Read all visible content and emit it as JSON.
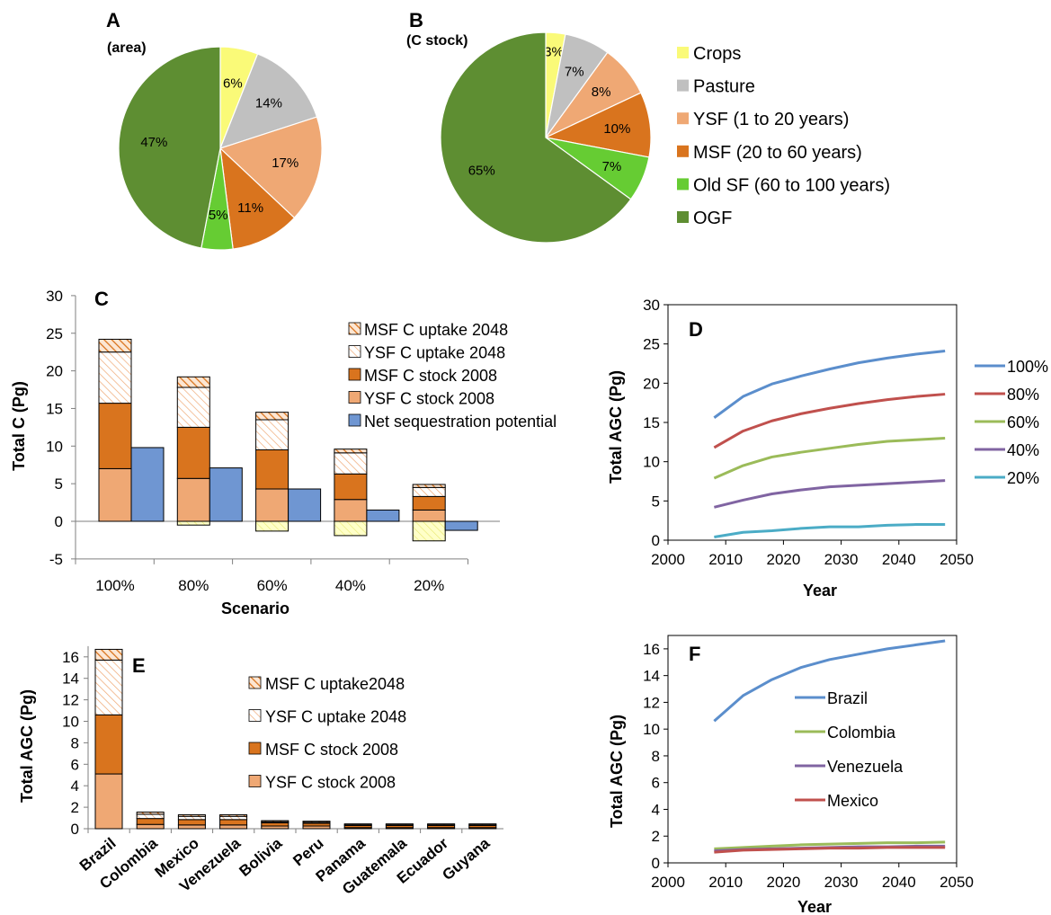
{
  "colors": {
    "crops": "#FAFA78",
    "pasture": "#C0C0C0",
    "ysf": "#EFA874",
    "msf": "#D9741E",
    "oldsf": "#66CC33",
    "ogf": "#5E8E32",
    "net": "#6F96D2",
    "line100": "#5B8ECC",
    "line80": "#C0504D",
    "line60": "#9BBB59",
    "line40": "#8064A2",
    "line20": "#4BACC6"
  },
  "chart_data": [
    {
      "panel": "A",
      "type": "pie",
      "title": "A",
      "subtitle": "(area)",
      "labels": [
        "Crops",
        "Pasture",
        "YSF (1 to 20 years)",
        "MSF (20 to 60 years)",
        "Old SF (60 to 100 years)",
        "OGF"
      ],
      "values": [
        6,
        14,
        17,
        11,
        5,
        47
      ],
      "value_labels": [
        "6%",
        "14%",
        "17%",
        "11%",
        "5%",
        "47%"
      ]
    },
    {
      "panel": "B",
      "type": "pie",
      "title": "B",
      "subtitle": "(C stock)",
      "labels": [
        "Crops",
        "Pasture",
        "YSF (1 to 20 years)",
        "MSF (20 to 60 years)",
        "Old SF (60 to 100 years)",
        "OGF"
      ],
      "values": [
        3,
        7,
        8,
        10,
        7,
        65
      ],
      "value_labels": [
        "3%",
        "7%",
        "8%",
        "10%",
        "7%",
        "65%"
      ],
      "legend": [
        "Crops",
        "Pasture",
        "YSF (1 to 20 years)",
        "MSF (20 to 60 years)",
        "Old SF (60 to 100 years)",
        "OGF"
      ]
    },
    {
      "panel": "C",
      "type": "bar",
      "title": "C",
      "categories": [
        "100%",
        "80%",
        "60%",
        "40%",
        "20%"
      ],
      "xlabel": "Scenario",
      "ylabel": "Total C (Pg)",
      "ylim": [
        -5,
        30
      ],
      "yticks": [
        "-5",
        "0",
        "5",
        "10",
        "15",
        "20",
        "25",
        "30"
      ],
      "stacked_series": [
        {
          "name": "YSF C stock 2008",
          "values": [
            7.0,
            5.7,
            4.3,
            2.9,
            1.5
          ]
        },
        {
          "name": "MSF C stock 2008",
          "values": [
            8.7,
            6.8,
            5.2,
            3.4,
            1.8
          ]
        },
        {
          "name": "YSF C uptake 2048",
          "values": [
            6.8,
            5.3,
            4.0,
            2.8,
            1.2
          ]
        },
        {
          "name": "MSF C uptake 2048",
          "values": [
            1.7,
            1.4,
            1.0,
            0.5,
            0.4
          ]
        }
      ],
      "negative_series": {
        "values": [
          0,
          -0.5,
          -1.3,
          -1.9,
          -2.6
        ]
      },
      "net_series": {
        "name": "Net sequestration potential",
        "values": [
          9.8,
          7.1,
          4.3,
          1.5,
          -1.2
        ]
      },
      "legend": [
        "MSF C uptake 2048",
        "YSF C uptake 2048",
        "MSF C stock 2008",
        "YSF C stock 2008",
        "Net sequestration potential"
      ]
    },
    {
      "panel": "D",
      "type": "line",
      "title": "D",
      "xlabel": "Year",
      "ylabel": "Total AGC (Pg)",
      "xlim": [
        2000,
        2050
      ],
      "ylim": [
        0,
        30
      ],
      "xticks": [
        "2000",
        "2010",
        "2020",
        "2030",
        "2040",
        "2050"
      ],
      "yticks": [
        "0",
        "5",
        "10",
        "15",
        "20",
        "25",
        "30"
      ],
      "x": [
        2008,
        2013,
        2018,
        2023,
        2028,
        2033,
        2038,
        2043,
        2048
      ],
      "series": [
        {
          "name": "100%",
          "values": [
            15.6,
            18.3,
            19.9,
            20.9,
            21.8,
            22.6,
            23.2,
            23.7,
            24.1
          ]
        },
        {
          "name": "80%",
          "values": [
            11.8,
            13.9,
            15.2,
            16.1,
            16.8,
            17.4,
            17.9,
            18.3,
            18.6
          ]
        },
        {
          "name": "60%",
          "values": [
            7.9,
            9.5,
            10.6,
            11.2,
            11.7,
            12.2,
            12.6,
            12.8,
            13.0
          ]
        },
        {
          "name": "40%",
          "values": [
            4.2,
            5.1,
            5.9,
            6.4,
            6.8,
            7.0,
            7.2,
            7.4,
            7.6
          ]
        },
        {
          "name": "20%",
          "values": [
            0.4,
            1.0,
            1.2,
            1.5,
            1.7,
            1.7,
            1.9,
            2.0,
            2.0
          ]
        }
      ]
    },
    {
      "panel": "E",
      "type": "bar",
      "title": "E",
      "categories": [
        "Brazil",
        "Colombia",
        "Mexico",
        "Venezuela",
        "Bolivia",
        "Peru",
        "Panama",
        "Guatemala",
        "Ecuador",
        "Guyana"
      ],
      "ylabel": "Total AGC (Pg)",
      "ylim": [
        0,
        17
      ],
      "yticks": [
        "0",
        "2",
        "4",
        "6",
        "8",
        "10",
        "12",
        "14",
        "16"
      ],
      "stacked_series": [
        {
          "name": "YSF C stock 2008",
          "values": [
            5.1,
            0.4,
            0.35,
            0.35,
            0.25,
            0.25,
            0.1,
            0.1,
            0.1,
            0.1
          ]
        },
        {
          "name": "MSF C stock 2008",
          "values": [
            5.5,
            0.55,
            0.5,
            0.5,
            0.3,
            0.25,
            0.2,
            0.2,
            0.2,
            0.2
          ]
        },
        {
          "name": "YSF C uptake 2048",
          "values": [
            5.1,
            0.4,
            0.3,
            0.3,
            0.1,
            0.1,
            0.1,
            0.1,
            0.1,
            0.1
          ]
        },
        {
          "name": "MSF C uptake2048",
          "values": [
            1.0,
            0.2,
            0.15,
            0.15,
            0.1,
            0.1,
            0.05,
            0.05,
            0.05,
            0.05
          ]
        }
      ],
      "legend": [
        "MSF C uptake2048",
        "YSF C uptake 2048",
        "MSF C stock 2008",
        "YSF C stock 2008"
      ]
    },
    {
      "panel": "F",
      "type": "line",
      "title": "F",
      "xlabel": "Year",
      "ylabel": "Total AGC (Pg)",
      "xlim": [
        2000,
        2050
      ],
      "ylim": [
        0,
        17
      ],
      "xticks": [
        "2000",
        "2010",
        "2020",
        "2030",
        "2040",
        "2050"
      ],
      "yticks": [
        "0",
        "2",
        "4",
        "6",
        "8",
        "10",
        "12",
        "14",
        "16"
      ],
      "x": [
        2008,
        2013,
        2018,
        2023,
        2028,
        2033,
        2038,
        2043,
        2048
      ],
      "series": [
        {
          "name": "Brazil",
          "values": [
            10.6,
            12.5,
            13.7,
            14.6,
            15.2,
            15.6,
            16.0,
            16.3,
            16.6
          ]
        },
        {
          "name": "Colombia",
          "values": [
            1.05,
            1.15,
            1.25,
            1.35,
            1.4,
            1.45,
            1.5,
            1.5,
            1.55
          ]
        },
        {
          "name": "Venezuela",
          "values": [
            0.9,
            1.0,
            1.05,
            1.1,
            1.15,
            1.2,
            1.2,
            1.25,
            1.25
          ]
        },
        {
          "name": "Mexico",
          "values": [
            0.8,
            0.95,
            1.0,
            1.05,
            1.1,
            1.1,
            1.15,
            1.15,
            1.15
          ]
        }
      ]
    }
  ]
}
